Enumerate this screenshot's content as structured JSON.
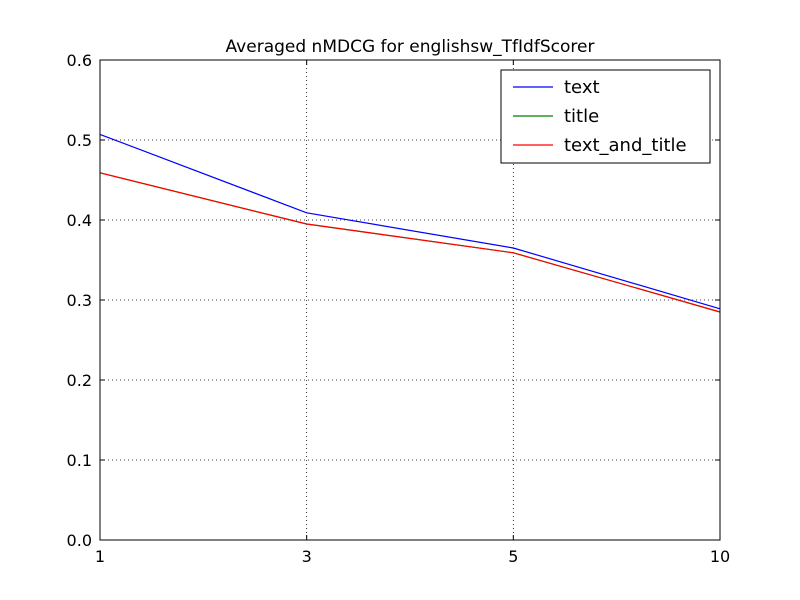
{
  "chart_data": {
    "type": "line",
    "title": "Averaged nMDCG for englishsw_TfIdfScorer",
    "categories": [
      "1",
      "3",
      "5",
      "10"
    ],
    "series": [
      {
        "name": "text",
        "color": "#0000ff",
        "values": [
          0.507,
          0.409,
          0.365,
          0.289
        ]
      },
      {
        "name": "title",
        "color": "#008000",
        "values": [
          0.459,
          0.395,
          0.359,
          0.285
        ]
      },
      {
        "name": "text_and_title",
        "color": "#ff0000",
        "values": [
          0.459,
          0.395,
          0.359,
          0.285
        ]
      }
    ],
    "ylim": [
      0,
      0.6
    ],
    "yticks": [
      {
        "value": 0,
        "label": "0.0"
      },
      0.1,
      0.2,
      0.3,
      0.4,
      0.5,
      0.6
    ],
    "grid": true,
    "legend": "upper right"
  }
}
